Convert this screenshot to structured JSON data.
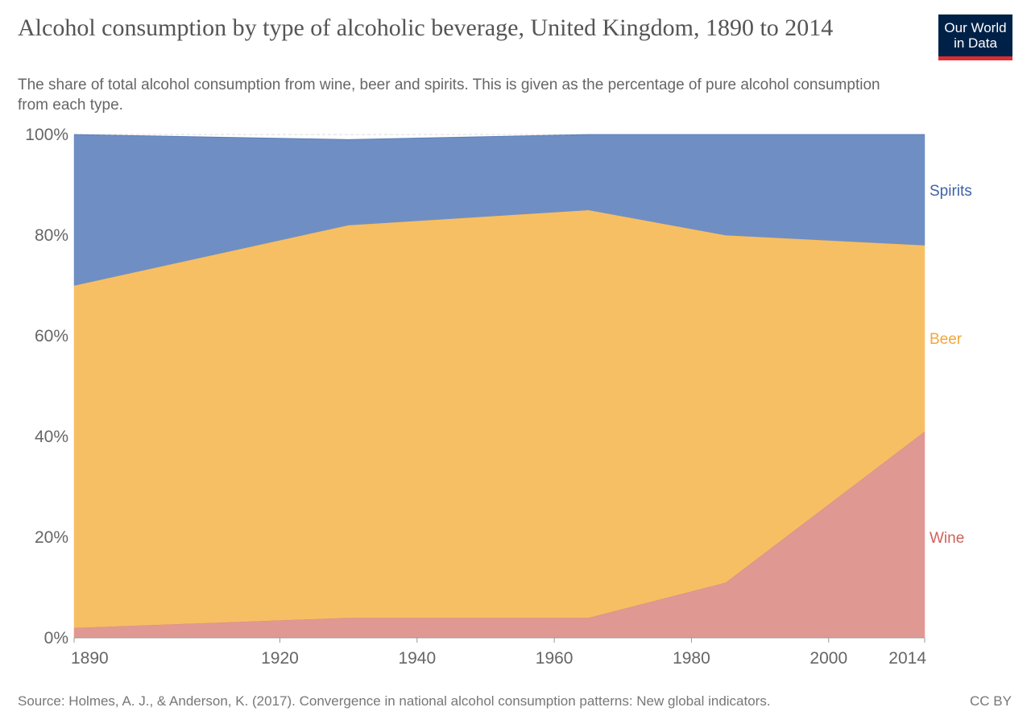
{
  "header": {
    "title": "Alcohol consumption by type of alcoholic beverage, United Kingdom, 1890 to 2014",
    "subtitle": "The share of total alcohol consumption from wine, beer and spirits. This is given as the percentage of pure alcohol consumption from each type."
  },
  "logo": {
    "line1": "Our World",
    "line2": "in Data"
  },
  "footer": {
    "source": "Source: Holmes, A. J., & Anderson, K. (2017). Convergence in national alcohol consumption patterns: New global indicators.",
    "license": "CC BY"
  },
  "colors": {
    "wine": "#e09893",
    "wine_label": "#d0625c",
    "beer": "#f7bf64",
    "beer_label": "#f3a73b",
    "spirits": "#6f8fc4",
    "spirits_label": "#3d63a8",
    "brand": "#002147",
    "brand_accent": "#dc2d32"
  },
  "chart_data": {
    "type": "area",
    "stacked": true,
    "x": [
      1890,
      1930,
      1965,
      1985,
      2014
    ],
    "xlim": [
      1890,
      2014
    ],
    "ylim": [
      0,
      100
    ],
    "y_ticks": [
      0,
      20,
      40,
      60,
      80,
      100
    ],
    "y_tick_labels": [
      "0%",
      "20%",
      "40%",
      "60%",
      "80%",
      "100%"
    ],
    "x_ticks": [
      1890,
      1920,
      1940,
      1960,
      1980,
      2000,
      2014
    ],
    "x_tick_labels": [
      "1890",
      "1920",
      "1940",
      "1960",
      "1980",
      "2000",
      "2014"
    ],
    "series": [
      {
        "name": "Wine",
        "values": [
          2,
          4,
          4,
          11,
          41
        ]
      },
      {
        "name": "Beer",
        "values": [
          68,
          78,
          81,
          69,
          37
        ]
      },
      {
        "name": "Spirits",
        "values": [
          30,
          17,
          15,
          20,
          22
        ]
      }
    ],
    "grid": true,
    "legend": "right"
  }
}
